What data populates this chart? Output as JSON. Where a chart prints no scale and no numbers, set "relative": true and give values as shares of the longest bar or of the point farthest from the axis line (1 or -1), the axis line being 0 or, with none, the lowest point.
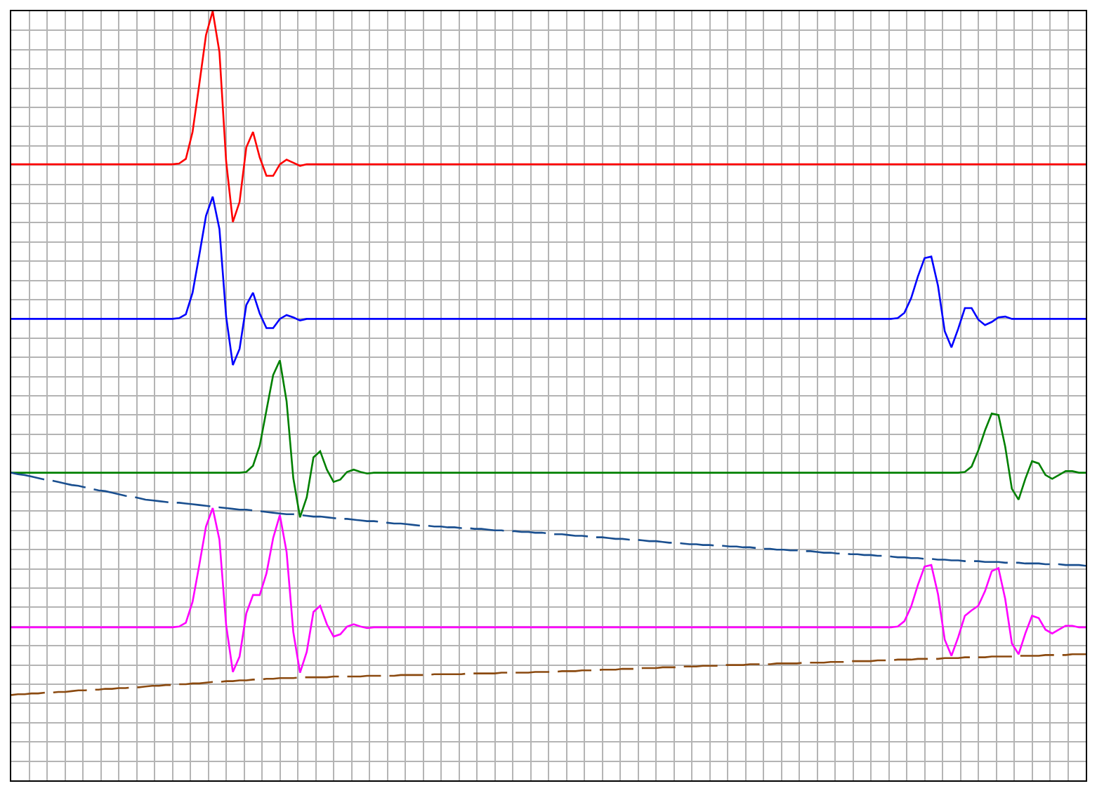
{
  "chart_data": {
    "type": "line",
    "relative": true,
    "grid": true,
    "marker": "none",
    "categories": [
      null,
      null,
      null,
      null,
      null,
      null,
      null,
      null,
      null,
      null,
      null,
      null,
      null,
      null,
      null,
      null,
      null,
      null,
      null,
      null,
      null,
      null,
      null,
      null,
      null,
      null,
      null,
      null,
      null,
      null,
      null,
      null,
      null,
      null,
      null,
      null,
      null,
      null,
      null,
      null,
      null,
      null,
      null,
      null,
      null,
      null,
      null,
      null,
      null,
      null,
      null,
      null,
      null,
      null,
      null,
      null,
      null,
      null,
      null,
      null,
      null,
      null,
      null,
      null,
      null,
      null,
      null,
      null,
      null,
      null,
      null,
      null,
      null,
      null,
      null,
      null,
      null,
      null,
      null,
      null,
      null,
      null,
      null,
      null,
      null,
      null,
      null,
      null,
      null,
      null,
      null,
      null,
      null,
      null,
      null,
      null,
      null,
      null,
      null,
      null,
      null,
      null,
      null,
      null,
      null,
      null,
      null,
      null,
      null,
      null,
      null,
      null,
      null,
      null,
      null,
      null,
      null,
      null,
      null,
      null,
      null,
      null,
      null,
      null,
      null,
      null,
      null,
      null,
      null,
      null,
      null,
      null,
      null,
      null,
      null,
      null,
      null,
      null,
      null,
      null,
      null,
      null,
      null,
      null,
      null,
      null,
      null,
      null,
      null,
      null,
      null,
      null,
      null,
      null,
      null,
      null,
      null,
      null,
      null,
      null,
      null
    ],
    "series": [
      {
        "color": "#ff0000",
        "line_style": "solid",
        "values": [
          0.801,
          0.801,
          0.801,
          0.801,
          0.801,
          0.801,
          0.801,
          0.801,
          0.801,
          0.801,
          0.801,
          0.801,
          0.801,
          0.801,
          0.801,
          0.801,
          0.801,
          0.801,
          0.801,
          0.801,
          0.801,
          0.801,
          0.801,
          0.801,
          0.801,
          0.802,
          0.808,
          0.843,
          0.905,
          0.969,
          1.0,
          0.947,
          0.805,
          0.726,
          0.752,
          0.823,
          0.843,
          0.81,
          0.786,
          0.786,
          0.801,
          0.807,
          0.803,
          0.799,
          0.801,
          0.801,
          0.801,
          0.801,
          0.801,
          0.801,
          0.801,
          0.801,
          0.801,
          0.801,
          0.801,
          0.801,
          0.801,
          0.801,
          0.801,
          0.801,
          0.801,
          0.801,
          0.801,
          0.801,
          0.801,
          0.801,
          0.801,
          0.801,
          0.801,
          0.801,
          0.801,
          0.801,
          0.801,
          0.801,
          0.801,
          0.801,
          0.801,
          0.801,
          0.801,
          0.801,
          0.801,
          0.801,
          0.801,
          0.801,
          0.801,
          0.801,
          0.801,
          0.801,
          0.801,
          0.801,
          0.801,
          0.801,
          0.801,
          0.801,
          0.801,
          0.801,
          0.801,
          0.801,
          0.801,
          0.801,
          0.801,
          0.801,
          0.801,
          0.801,
          0.801,
          0.801,
          0.801,
          0.801,
          0.801,
          0.801,
          0.801,
          0.801,
          0.801,
          0.801,
          0.801,
          0.801,
          0.801,
          0.801,
          0.801,
          0.801,
          0.801,
          0.801,
          0.801,
          0.801,
          0.801,
          0.801,
          0.801,
          0.801,
          0.801,
          0.801,
          0.801,
          0.801,
          0.801,
          0.801,
          0.801,
          0.801,
          0.801,
          0.801,
          0.801,
          0.801,
          0.801,
          0.801,
          0.801,
          0.801,
          0.801,
          0.801,
          0.801,
          0.801,
          0.801,
          0.801,
          0.801,
          0.801,
          0.801,
          0.801,
          0.801,
          0.801,
          0.801,
          0.801,
          0.801,
          0.801,
          0.801
        ]
      },
      {
        "color": "#0000ff",
        "line_style": "solid",
        "values": [
          0.6,
          0.6,
          0.6,
          0.6,
          0.6,
          0.6,
          0.6,
          0.6,
          0.6,
          0.6,
          0.6,
          0.6,
          0.6,
          0.6,
          0.6,
          0.6,
          0.6,
          0.6,
          0.6,
          0.6,
          0.6,
          0.6,
          0.6,
          0.6,
          0.6,
          0.601,
          0.606,
          0.634,
          0.683,
          0.734,
          0.759,
          0.717,
          0.603,
          0.54,
          0.561,
          0.618,
          0.634,
          0.607,
          0.588,
          0.588,
          0.6,
          0.605,
          0.602,
          0.598,
          0.6,
          0.6,
          0.6,
          0.6,
          0.6,
          0.6,
          0.6,
          0.6,
          0.6,
          0.6,
          0.6,
          0.6,
          0.6,
          0.6,
          0.6,
          0.6,
          0.6,
          0.6,
          0.6,
          0.6,
          0.6,
          0.6,
          0.6,
          0.6,
          0.6,
          0.6,
          0.6,
          0.6,
          0.6,
          0.6,
          0.6,
          0.6,
          0.6,
          0.6,
          0.6,
          0.6,
          0.6,
          0.6,
          0.6,
          0.6,
          0.6,
          0.6,
          0.6,
          0.6,
          0.6,
          0.6,
          0.6,
          0.6,
          0.6,
          0.6,
          0.6,
          0.6,
          0.6,
          0.6,
          0.6,
          0.6,
          0.6,
          0.6,
          0.6,
          0.6,
          0.6,
          0.6,
          0.6,
          0.6,
          0.6,
          0.6,
          0.6,
          0.6,
          0.6,
          0.6,
          0.6,
          0.6,
          0.6,
          0.6,
          0.6,
          0.6,
          0.6,
          0.6,
          0.6,
          0.6,
          0.6,
          0.6,
          0.6,
          0.6,
          0.6,
          0.6,
          0.6,
          0.6,
          0.601,
          0.608,
          0.627,
          0.655,
          0.679,
          0.681,
          0.643,
          0.584,
          0.563,
          0.587,
          0.614,
          0.614,
          0.599,
          0.592,
          0.596,
          0.602,
          0.603,
          0.6,
          0.6,
          0.6,
          0.6,
          0.6,
          0.6,
          0.6,
          0.6,
          0.6,
          0.6,
          0.6,
          0.6
        ]
      },
      {
        "color": "#008000",
        "line_style": "solid",
        "values": [
          0.4,
          0.4,
          0.4,
          0.4,
          0.4,
          0.4,
          0.4,
          0.4,
          0.4,
          0.4,
          0.4,
          0.4,
          0.4,
          0.4,
          0.4,
          0.4,
          0.4,
          0.4,
          0.4,
          0.4,
          0.4,
          0.4,
          0.4,
          0.4,
          0.4,
          0.4,
          0.4,
          0.4,
          0.4,
          0.4,
          0.4,
          0.4,
          0.4,
          0.4,
          0.4,
          0.401,
          0.409,
          0.435,
          0.481,
          0.527,
          0.546,
          0.493,
          0.393,
          0.342,
          0.368,
          0.42,
          0.428,
          0.404,
          0.388,
          0.391,
          0.401,
          0.404,
          0.401,
          0.399,
          0.4,
          0.4,
          0.4,
          0.4,
          0.4,
          0.4,
          0.4,
          0.4,
          0.4,
          0.4,
          0.4,
          0.4,
          0.4,
          0.4,
          0.4,
          0.4,
          0.4,
          0.4,
          0.4,
          0.4,
          0.4,
          0.4,
          0.4,
          0.4,
          0.4,
          0.4,
          0.4,
          0.4,
          0.4,
          0.4,
          0.4,
          0.4,
          0.4,
          0.4,
          0.4,
          0.4,
          0.4,
          0.4,
          0.4,
          0.4,
          0.4,
          0.4,
          0.4,
          0.4,
          0.4,
          0.4,
          0.4,
          0.4,
          0.4,
          0.4,
          0.4,
          0.4,
          0.4,
          0.4,
          0.4,
          0.4,
          0.4,
          0.4,
          0.4,
          0.4,
          0.4,
          0.4,
          0.4,
          0.4,
          0.4,
          0.4,
          0.4,
          0.4,
          0.4,
          0.4,
          0.4,
          0.4,
          0.4,
          0.4,
          0.4,
          0.4,
          0.4,
          0.4,
          0.4,
          0.4,
          0.4,
          0.4,
          0.4,
          0.4,
          0.4,
          0.4,
          0.4,
          0.4,
          0.401,
          0.408,
          0.429,
          0.455,
          0.477,
          0.475,
          0.434,
          0.379,
          0.365,
          0.392,
          0.415,
          0.412,
          0.397,
          0.392,
          0.397,
          0.402,
          0.402,
          0.4,
          0.4
        ]
      },
      {
        "color": "#ff00ff",
        "line_style": "solid",
        "values": [
          0.199,
          0.199,
          0.199,
          0.199,
          0.199,
          0.199,
          0.199,
          0.199,
          0.199,
          0.199,
          0.199,
          0.199,
          0.199,
          0.199,
          0.199,
          0.199,
          0.199,
          0.199,
          0.199,
          0.199,
          0.199,
          0.199,
          0.199,
          0.199,
          0.199,
          0.2,
          0.205,
          0.232,
          0.28,
          0.33,
          0.354,
          0.313,
          0.202,
          0.141,
          0.161,
          0.217,
          0.241,
          0.241,
          0.269,
          0.315,
          0.345,
          0.297,
          0.193,
          0.14,
          0.167,
          0.219,
          0.227,
          0.203,
          0.187,
          0.19,
          0.2,
          0.203,
          0.2,
          0.198,
          0.199,
          0.199,
          0.199,
          0.199,
          0.199,
          0.199,
          0.199,
          0.199,
          0.199,
          0.199,
          0.199,
          0.199,
          0.199,
          0.199,
          0.199,
          0.199,
          0.199,
          0.199,
          0.199,
          0.199,
          0.199,
          0.199,
          0.199,
          0.199,
          0.199,
          0.199,
          0.199,
          0.199,
          0.199,
          0.199,
          0.199,
          0.199,
          0.199,
          0.199,
          0.199,
          0.199,
          0.199,
          0.199,
          0.199,
          0.199,
          0.199,
          0.199,
          0.199,
          0.199,
          0.199,
          0.199,
          0.199,
          0.199,
          0.199,
          0.199,
          0.199,
          0.199,
          0.199,
          0.199,
          0.199,
          0.199,
          0.199,
          0.199,
          0.199,
          0.199,
          0.199,
          0.199,
          0.199,
          0.199,
          0.199,
          0.199,
          0.199,
          0.199,
          0.199,
          0.199,
          0.199,
          0.199,
          0.199,
          0.199,
          0.199,
          0.199,
          0.199,
          0.199,
          0.2,
          0.207,
          0.226,
          0.254,
          0.278,
          0.28,
          0.242,
          0.183,
          0.162,
          0.186,
          0.214,
          0.221,
          0.227,
          0.246,
          0.272,
          0.276,
          0.236,
          0.178,
          0.164,
          0.191,
          0.214,
          0.211,
          0.196,
          0.191,
          0.196,
          0.201,
          0.201,
          0.199,
          0.199
        ]
      },
      {
        "color": "#1a4f8f",
        "line_style": "dashed",
        "values": [
          0.4,
          0.398,
          0.397,
          0.395,
          0.393,
          0.391,
          0.39,
          0.388,
          0.386,
          0.384,
          0.383,
          0.381,
          0.379,
          0.377,
          0.376,
          0.374,
          0.372,
          0.37,
          0.369,
          0.367,
          0.365,
          0.364,
          0.363,
          0.362,
          0.361,
          0.361,
          0.36,
          0.359,
          0.358,
          0.357,
          0.356,
          0.355,
          0.354,
          0.353,
          0.352,
          0.352,
          0.351,
          0.35,
          0.349,
          0.348,
          0.347,
          0.346,
          0.346,
          0.345,
          0.344,
          0.343,
          0.343,
          0.342,
          0.341,
          0.34,
          0.34,
          0.339,
          0.338,
          0.337,
          0.337,
          0.336,
          0.335,
          0.334,
          0.334,
          0.333,
          0.332,
          0.331,
          0.331,
          0.33,
          0.33,
          0.329,
          0.329,
          0.328,
          0.328,
          0.327,
          0.327,
          0.326,
          0.325,
          0.325,
          0.324,
          0.324,
          0.323,
          0.323,
          0.322,
          0.322,
          0.321,
          0.32,
          0.32,
          0.319,
          0.318,
          0.318,
          0.317,
          0.316,
          0.316,
          0.315,
          0.314,
          0.314,
          0.313,
          0.313,
          0.312,
          0.311,
          0.311,
          0.31,
          0.309,
          0.309,
          0.308,
          0.307,
          0.307,
          0.306,
          0.306,
          0.305,
          0.305,
          0.304,
          0.304,
          0.303,
          0.303,
          0.302,
          0.301,
          0.301,
          0.3,
          0.3,
          0.299,
          0.299,
          0.298,
          0.298,
          0.297,
          0.296,
          0.296,
          0.295,
          0.295,
          0.294,
          0.294,
          0.293,
          0.293,
          0.292,
          0.292,
          0.291,
          0.29,
          0.29,
          0.289,
          0.289,
          0.288,
          0.288,
          0.287,
          0.287,
          0.286,
          0.286,
          0.285,
          0.285,
          0.285,
          0.284,
          0.284,
          0.284,
          0.283,
          0.283,
          0.283,
          0.282,
          0.282,
          0.282,
          0.281,
          0.281,
          0.281,
          0.28,
          0.28,
          0.28,
          0.279
        ]
      },
      {
        "color": "#8b4a10",
        "line_style": "dashed",
        "values": [
          0.111,
          0.112,
          0.112,
          0.113,
          0.113,
          0.114,
          0.114,
          0.115,
          0.115,
          0.116,
          0.117,
          0.117,
          0.118,
          0.118,
          0.119,
          0.119,
          0.12,
          0.12,
          0.121,
          0.121,
          0.122,
          0.123,
          0.123,
          0.124,
          0.124,
          0.125,
          0.125,
          0.126,
          0.126,
          0.127,
          0.128,
          0.128,
          0.129,
          0.129,
          0.13,
          0.13,
          0.131,
          0.131,
          0.132,
          0.132,
          0.133,
          0.133,
          0.133,
          0.134,
          0.134,
          0.134,
          0.134,
          0.134,
          0.135,
          0.135,
          0.135,
          0.135,
          0.135,
          0.136,
          0.136,
          0.136,
          0.136,
          0.136,
          0.137,
          0.137,
          0.137,
          0.137,
          0.137,
          0.138,
          0.138,
          0.138,
          0.138,
          0.138,
          0.139,
          0.139,
          0.139,
          0.139,
          0.139,
          0.14,
          0.14,
          0.14,
          0.14,
          0.14,
          0.141,
          0.141,
          0.141,
          0.141,
          0.142,
          0.142,
          0.142,
          0.143,
          0.143,
          0.143,
          0.144,
          0.144,
          0.144,
          0.145,
          0.145,
          0.145,
          0.146,
          0.146,
          0.146,
          0.147,
          0.147,
          0.147,
          0.148,
          0.148,
          0.148,
          0.149,
          0.149,
          0.149,
          0.15,
          0.15,
          0.15,
          0.15,
          0.151,
          0.151,
          0.151,
          0.151,
          0.152,
          0.152,
          0.152,
          0.152,
          0.153,
          0.153,
          0.153,
          0.153,
          0.154,
          0.154,
          0.154,
          0.155,
          0.155,
          0.155,
          0.155,
          0.156,
          0.156,
          0.156,
          0.157,
          0.157,
          0.157,
          0.158,
          0.158,
          0.158,
          0.158,
          0.159,
          0.159,
          0.159,
          0.16,
          0.16,
          0.16,
          0.16,
          0.161,
          0.161,
          0.161,
          0.161,
          0.162,
          0.162,
          0.162,
          0.162,
          0.163,
          0.163,
          0.163,
          0.163,
          0.164,
          0.164,
          0.164
        ]
      }
    ]
  }
}
